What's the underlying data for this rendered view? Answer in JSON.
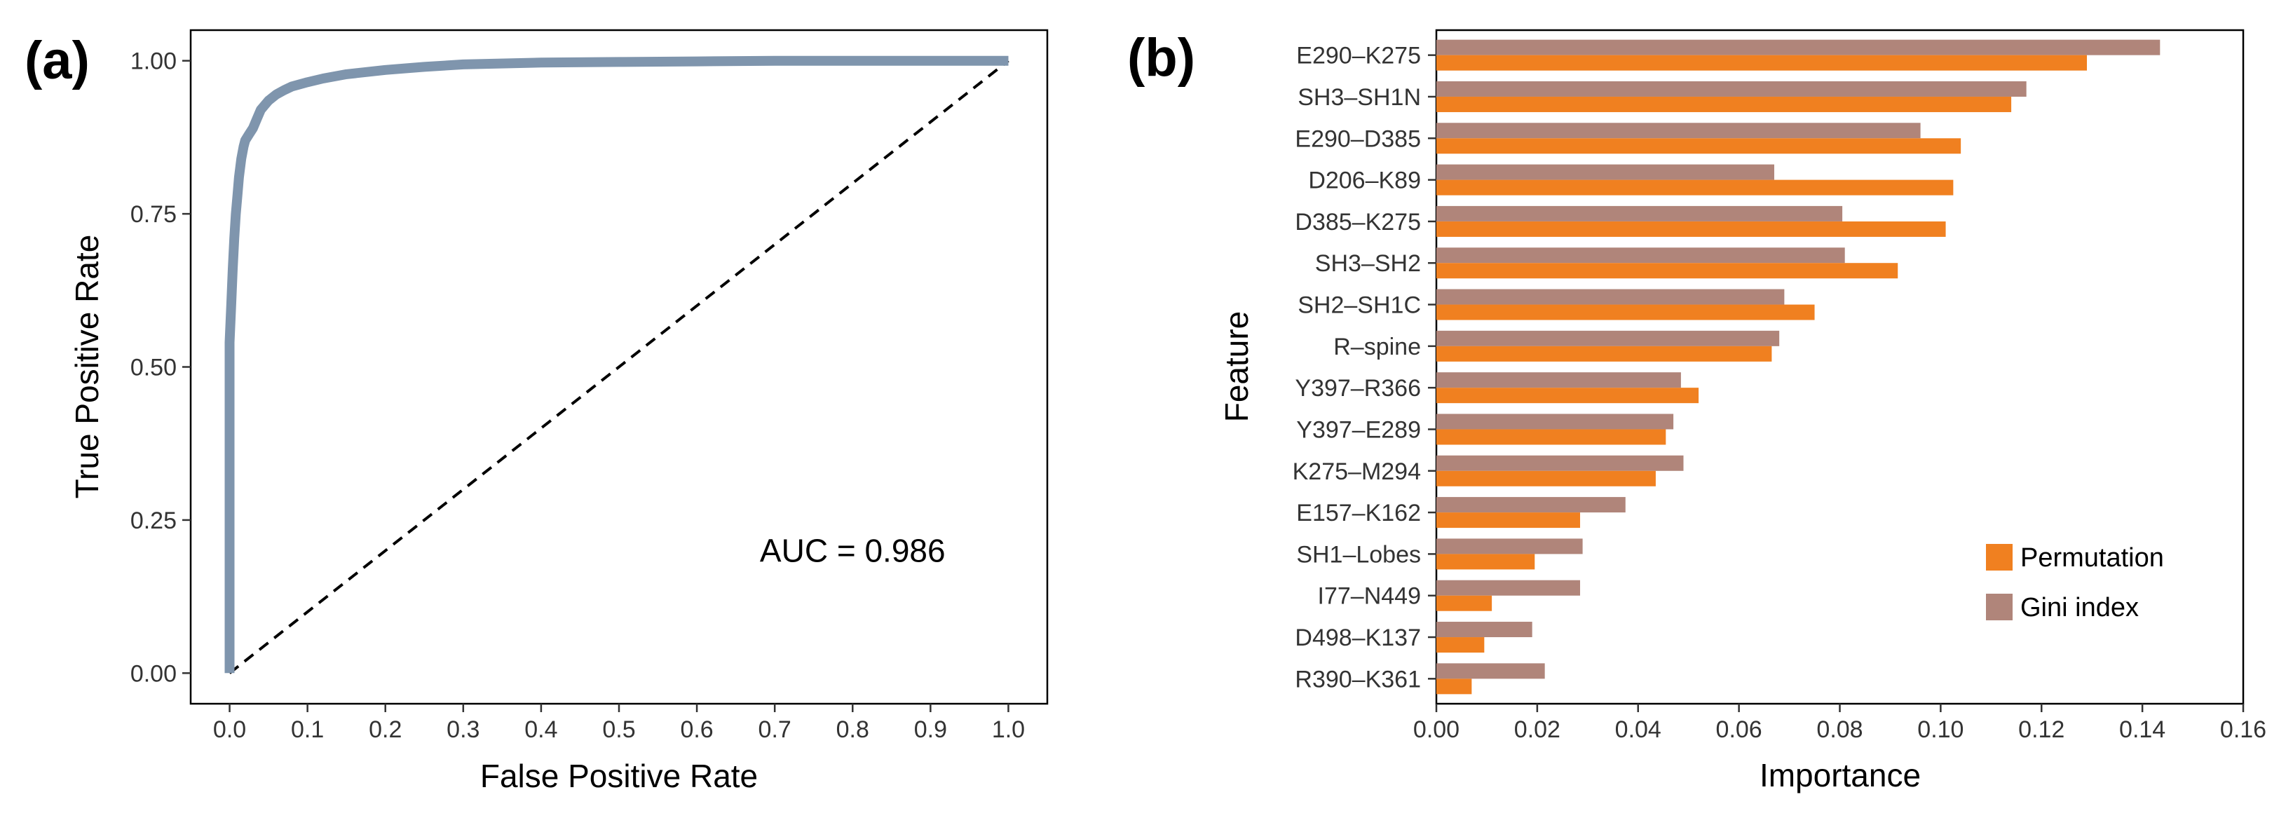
{
  "panels": {
    "a": "(a)",
    "b": "(b)"
  },
  "chart_data": [
    {
      "type": "line",
      "panel": "(a)",
      "title": "",
      "xlabel": "False Positive Rate",
      "ylabel": "True Positive Rate",
      "xlim": [
        -0.05,
        1.05
      ],
      "ylim": [
        -0.05,
        1.05
      ],
      "xticks": [
        "0.0",
        "0.1",
        "0.2",
        "0.3",
        "0.4",
        "0.5",
        "0.6",
        "0.7",
        "0.8",
        "0.9",
        "1.0"
      ],
      "yticks": [
        "0.00",
        "0.25",
        "0.50",
        "0.75",
        "1.00"
      ],
      "grid": false,
      "series": [
        {
          "color": "#7f95ad",
          "x": [
            0.0,
            0.0,
            0.002,
            0.004,
            0.006,
            0.008,
            0.01,
            0.012,
            0.015,
            0.018,
            0.02,
            0.025,
            0.03,
            0.035,
            0.04,
            0.05,
            0.06,
            0.07,
            0.08,
            0.1,
            0.12,
            0.15,
            0.2,
            0.25,
            0.3,
            0.4,
            0.5,
            0.6,
            0.7,
            0.8,
            0.9,
            1.0
          ],
          "y": [
            0.0,
            0.54,
            0.6,
            0.66,
            0.71,
            0.75,
            0.78,
            0.81,
            0.84,
            0.86,
            0.87,
            0.88,
            0.89,
            0.905,
            0.92,
            0.935,
            0.945,
            0.952,
            0.958,
            0.965,
            0.971,
            0.978,
            0.985,
            0.99,
            0.994,
            0.997,
            0.998,
            0.999,
            1.0,
            1.0,
            1.0,
            1.0
          ]
        }
      ],
      "reference_line": {
        "style": "dashed",
        "color": "#000000",
        "x": [
          0,
          1
        ],
        "y": [
          0,
          1
        ]
      },
      "annotations": [
        {
          "text": "AUC = 0.986",
          "x": 0.8,
          "y": 0.2
        }
      ]
    },
    {
      "type": "bar",
      "orientation": "horizontal",
      "panel": "(b)",
      "title": "",
      "xlabel": "Importance",
      "ylabel": "Feature",
      "xlim": [
        0,
        0.16
      ],
      "xticks": [
        "0.00",
        "0.02",
        "0.04",
        "0.06",
        "0.08",
        "0.10",
        "0.12",
        "0.14",
        "0.16"
      ],
      "grid": false,
      "legend_position": "bottom-right",
      "categories": [
        "E290–K275",
        "SH3–SH1N",
        "E290–D385",
        "D206–K89",
        "D385–K275",
        "SH3–SH2",
        "SH2–SH1C",
        "R–spine",
        "Y397–R366",
        "Y397–E289",
        "K275–M294",
        "E157–K162",
        "SH1–Lobes",
        "I77–N449",
        "D498–K137",
        "R390–K361"
      ],
      "series": [
        {
          "name": "Gini index",
          "color": "#b0857a",
          "values": [
            0.1435,
            0.117,
            0.096,
            0.067,
            0.0805,
            0.081,
            0.069,
            0.068,
            0.0485,
            0.047,
            0.049,
            0.0375,
            0.029,
            0.0285,
            0.019,
            0.0215
          ]
        },
        {
          "name": "Permutation",
          "color": "#f08020",
          "values": [
            0.129,
            0.114,
            0.104,
            0.1025,
            0.101,
            0.0915,
            0.075,
            0.0665,
            0.052,
            0.0455,
            0.0435,
            0.0285,
            0.0195,
            0.011,
            0.0095,
            0.007
          ]
        }
      ]
    }
  ]
}
